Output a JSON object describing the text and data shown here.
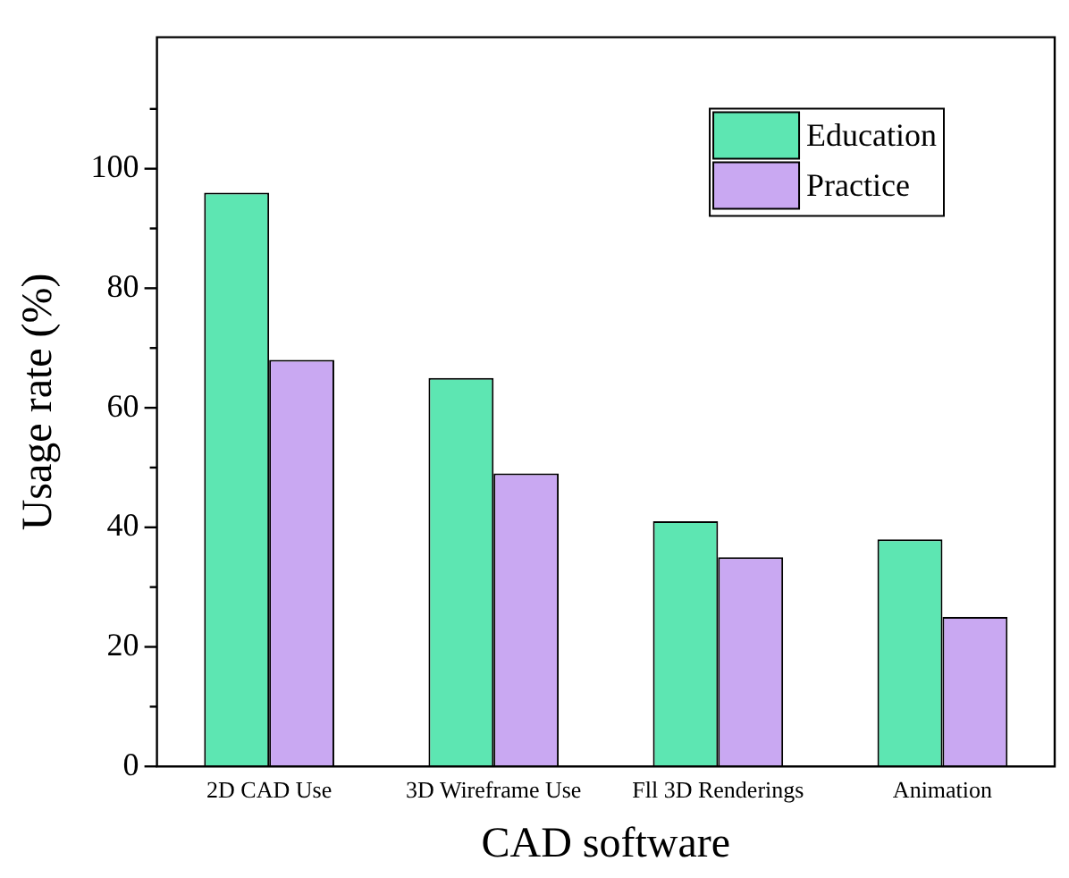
{
  "chart_data": {
    "type": "bar",
    "xlabel": "CAD software",
    "ylabel": "Usage rate (%)",
    "categories": [
      "2D CAD Use",
      "3D Wireframe Use",
      "Fll 3D Renderings",
      "Animation"
    ],
    "series": [
      {
        "name": "Education",
        "color": "#5de6b2",
        "values": [
          96,
          65,
          41,
          38
        ]
      },
      {
        "name": "Practice",
        "color": "#c9a8f2",
        "values": [
          68,
          49,
          35,
          25
        ]
      }
    ],
    "ylim": [
      0,
      122
    ],
    "yticks": [
      0,
      {
        "value": 10,
        "label": null
      },
      20,
      {
        "value": 30,
        "label": null
      },
      40,
      {
        "value": 50,
        "label": null
      },
      60,
      {
        "value": 70,
        "label": null
      },
      80,
      {
        "value": 90,
        "label": null
      },
      100,
      {
        "value": 110,
        "label": null
      }
    ],
    "grid": false,
    "legend": "top right"
  }
}
